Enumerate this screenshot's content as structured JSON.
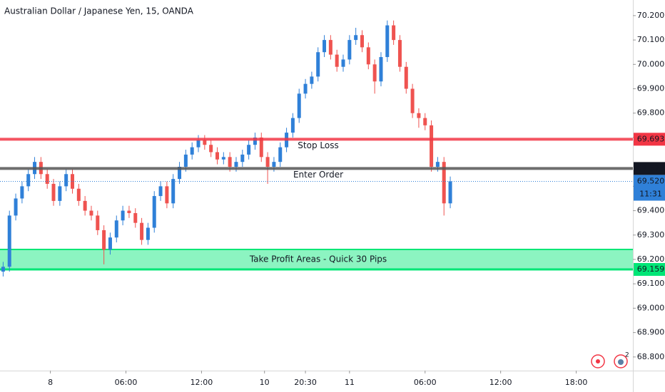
{
  "chart_data": {
    "type": "candlestick",
    "title": "Australian Dollar / Japanese Yen, 15, OANDA",
    "x": [
      0,
      2,
      4,
      6,
      8,
      10,
      12,
      14,
      16,
      18,
      20,
      22,
      24,
      26,
      28,
      30,
      32,
      34,
      36,
      38,
      40,
      42,
      44,
      46,
      48,
      50,
      52,
      54,
      56,
      58,
      60,
      62,
      64,
      66,
      68,
      70,
      72,
      74,
      76,
      78,
      80,
      82,
      84,
      86,
      88,
      90,
      92,
      94,
      96,
      98,
      100,
      102,
      104,
      106,
      108,
      110,
      112,
      114,
      116,
      118,
      120,
      122,
      124,
      126,
      128,
      130,
      132,
      134,
      136,
      138,
      140,
      142
    ],
    "open": [
      69.15,
      69.17,
      69.38,
      69.45,
      69.5,
      69.55,
      69.6,
      69.55,
      69.51,
      69.44,
      69.5,
      69.55,
      69.49,
      69.44,
      69.4,
      69.38,
      69.32,
      69.24,
      69.29,
      69.36,
      69.4,
      69.39,
      69.35,
      69.28,
      69.33,
      69.46,
      69.5,
      69.43,
      69.53,
      69.58,
      69.63,
      69.66,
      69.69,
      69.67,
      69.64,
      69.61,
      69.62,
      69.58,
      69.6,
      69.63,
      69.67,
      69.7,
      69.62,
      69.58,
      69.6,
      69.66,
      69.72,
      69.78,
      69.88,
      69.92,
      69.95,
      70.05,
      70.1,
      70.04,
      69.99,
      70.02,
      70.1,
      70.12,
      70.07,
      70.0,
      69.93,
      70.03,
      70.16,
      70.1,
      69.99,
      69.9,
      69.8,
      69.78,
      69.75,
      69.58,
      69.6,
      69.43
    ],
    "high": [
      69.19,
      69.4,
      69.47,
      69.52,
      69.57,
      69.62,
      69.62,
      69.57,
      69.53,
      69.52,
      69.57,
      69.57,
      69.51,
      69.46,
      69.42,
      69.4,
      69.34,
      69.31,
      69.38,
      69.42,
      69.42,
      69.41,
      69.37,
      69.35,
      69.48,
      69.52,
      69.52,
      69.55,
      69.6,
      69.65,
      69.68,
      69.71,
      69.71,
      69.69,
      69.66,
      69.64,
      69.64,
      69.62,
      69.65,
      69.69,
      69.72,
      69.72,
      69.64,
      69.62,
      69.68,
      69.74,
      69.8,
      69.9,
      69.94,
      69.97,
      70.07,
      70.12,
      70.12,
      70.06,
      70.04,
      70.12,
      70.15,
      70.14,
      70.09,
      70.02,
      70.05,
      70.18,
      70.18,
      70.12,
      70.01,
      69.92,
      69.82,
      69.8,
      69.77,
      69.62,
      69.62,
      69.54
    ],
    "low": [
      69.13,
      69.15,
      69.36,
      69.43,
      69.48,
      69.53,
      69.53,
      69.49,
      69.42,
      69.42,
      69.48,
      69.47,
      69.42,
      69.38,
      69.36,
      69.3,
      69.18,
      69.22,
      69.27,
      69.34,
      69.37,
      69.33,
      69.26,
      69.26,
      69.31,
      69.44,
      69.41,
      69.41,
      69.51,
      69.56,
      69.61,
      69.64,
      69.65,
      69.62,
      69.59,
      69.59,
      69.56,
      69.56,
      69.58,
      69.61,
      69.65,
      69.6,
      69.51,
      69.56,
      69.58,
      69.64,
      69.7,
      69.76,
      69.86,
      69.9,
      69.93,
      70.03,
      70.02,
      69.97,
      69.97,
      70.0,
      70.08,
      70.05,
      69.98,
      69.88,
      69.91,
      70.01,
      70.08,
      69.97,
      69.88,
      69.78,
      69.74,
      69.73,
      69.56,
      69.56,
      69.38,
      69.41
    ],
    "close": [
      69.17,
      69.38,
      69.45,
      69.5,
      69.55,
      69.6,
      69.55,
      69.51,
      69.44,
      69.5,
      69.55,
      69.49,
      69.44,
      69.4,
      69.38,
      69.32,
      69.24,
      69.29,
      69.36,
      69.4,
      69.39,
      69.35,
      69.28,
      69.33,
      69.46,
      69.5,
      69.43,
      69.53,
      69.58,
      69.63,
      69.66,
      69.69,
      69.67,
      69.64,
      69.61,
      69.62,
      69.58,
      69.6,
      69.63,
      69.67,
      69.7,
      69.62,
      69.58,
      69.6,
      69.66,
      69.72,
      69.78,
      69.88,
      69.92,
      69.95,
      70.05,
      70.1,
      70.04,
      69.99,
      70.02,
      70.1,
      70.12,
      70.07,
      70.0,
      69.93,
      70.03,
      70.16,
      70.1,
      69.99,
      69.9,
      69.8,
      69.78,
      69.75,
      69.58,
      69.6,
      69.43,
      69.52
    ],
    "up_color": "#2f80d8",
    "down_color": "#ef5350",
    "xlim": [
      -1,
      200
    ],
    "xticks": [
      {
        "value": 15,
        "label": "8"
      },
      {
        "value": 39,
        "label": "06:00"
      },
      {
        "value": 63,
        "label": "12:00"
      },
      {
        "value": 83,
        "label": "10"
      },
      {
        "value": 96,
        "label": "20:30"
      },
      {
        "value": 110,
        "label": "11"
      },
      {
        "value": 134,
        "label": "06:00"
      },
      {
        "value": 158,
        "label": "12:00"
      },
      {
        "value": 182,
        "label": "18:00"
      }
    ],
    "ylim": [
      68.744,
      70.264
    ],
    "yticks": [
      {
        "value": 68.8,
        "label": "68.800"
      },
      {
        "value": 68.9,
        "label": "68.900"
      },
      {
        "value": 69.0,
        "label": "69.000"
      },
      {
        "value": 69.1,
        "label": "69.100"
      },
      {
        "value": 69.2,
        "label": "69.200"
      },
      {
        "value": 69.3,
        "label": "69.300"
      },
      {
        "value": 69.4,
        "label": "69.400"
      },
      {
        "value": 69.5,
        "label": "69.500"
      },
      {
        "value": 69.7,
        "label": "69.700"
      },
      {
        "value": 69.8,
        "label": "69.800"
      },
      {
        "value": 69.9,
        "label": "69.900"
      },
      {
        "value": 70.0,
        "label": "70.000"
      },
      {
        "value": 70.1,
        "label": "70.100"
      },
      {
        "value": 70.2,
        "label": "70.200"
      }
    ],
    "levels": [
      {
        "name": "Stop Loss",
        "value": 69.693,
        "color": "#f23645"
      },
      {
        "name": "Enter Order",
        "value": 69.573,
        "color": "#555555"
      }
    ],
    "last_price": {
      "value": 69.52,
      "label": "69.520",
      "time": "11:31",
      "color": "#2f80d8"
    },
    "zone": {
      "name": "Take Profit Areas - Quick 30 Pips",
      "low": 69.159,
      "high": 69.241,
      "color": "#00e676"
    }
  },
  "toolbar": {
    "badge": "2"
  }
}
